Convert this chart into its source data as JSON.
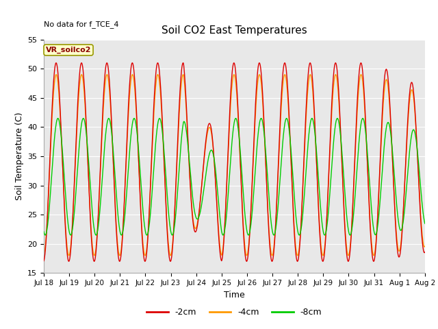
{
  "title": "Soil CO2 East Temperatures",
  "subtitle": "No data for f_TCE_4",
  "xlabel": "Time",
  "ylabel": "Soil Temperature (C)",
  "ylim": [
    15,
    55
  ],
  "legend_label": "VR_soilco2",
  "series_labels": [
    "-2cm",
    "-4cm",
    "-8cm"
  ],
  "series_colors": [
    "#dd0000",
    "#ff9900",
    "#00cc00"
  ],
  "axes_bg_color": "#e8e8e8",
  "fig_bg_color": "#ffffff",
  "tick_dates": [
    "Jul 18",
    "Jul 19",
    "Jul 20",
    "Jul 21",
    "Jul 22",
    "Jul 23",
    "Jul 24",
    "Jul 25",
    "Jul 26",
    "Jul 27",
    "Jul 28",
    "Jul 29",
    "Jul 30",
    "Jul 31",
    "Aug 1",
    "Aug 2"
  ],
  "yticks": [
    15,
    20,
    25,
    30,
    35,
    40,
    45,
    50,
    55
  ],
  "n_points": 1000
}
